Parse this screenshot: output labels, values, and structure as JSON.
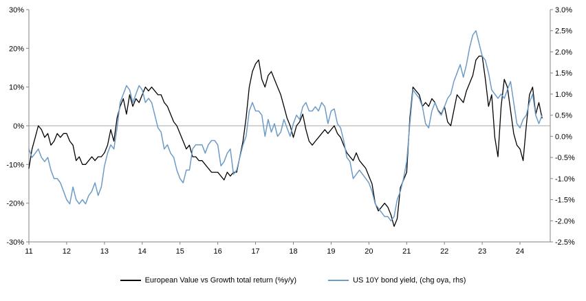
{
  "chart_data": {
    "type": "line",
    "title": "",
    "background": "#ffffff",
    "grid": false,
    "legend_position": "bottom-center",
    "zero_line_color": "#a6a6a6",
    "spine_color": "#808080",
    "x_min": 11,
    "x_max": 24.8,
    "x_ticks": [
      "11",
      "12",
      "13",
      "14",
      "15",
      "16",
      "17",
      "18",
      "19",
      "20",
      "21",
      "22",
      "23",
      "24"
    ],
    "left_axis": {
      "max": 30,
      "min": -30,
      "ticks": [
        "30%",
        "20%",
        "10%",
        "0%",
        "-10%",
        "-20%",
        "-30%"
      ]
    },
    "right_axis": {
      "max": 3.0,
      "min": -2.5,
      "ticks": [
        "3.0%",
        "2.5%",
        "2.0%",
        "1.5%",
        "1.0%",
        "0.5%",
        "0.0%",
        "-0.5%",
        "-1.0%",
        "-1.5%",
        "-2.0%",
        "-2.5%"
      ]
    },
    "x_start": 11.0,
    "x_step": 0.0833333,
    "series": [
      {
        "name": "European Value vs Growth total return (%y/y)",
        "color": "#000000",
        "width": 1.3,
        "axis": "left",
        "values": [
          -11,
          -6,
          -3,
          0,
          -1,
          -3,
          -2,
          -5,
          -4,
          -2,
          -3,
          -2,
          -2,
          -4,
          -5,
          -9,
          -8,
          -10,
          -10,
          -9,
          -8,
          -9,
          -8,
          -8,
          -7,
          -5,
          -1,
          -4,
          2,
          5,
          7,
          3,
          8,
          5,
          7,
          6,
          8,
          10,
          9,
          10,
          9,
          8,
          8,
          6,
          5,
          3,
          1,
          0,
          -2,
          -4,
          -6,
          -5,
          -8,
          -8,
          -9,
          -9,
          -10,
          -11,
          -12,
          -12,
          -12,
          -13,
          -14,
          -12,
          -13,
          -12,
          -12,
          -8,
          -4,
          2,
          10,
          14,
          16,
          17,
          12,
          10,
          13,
          14,
          12,
          10,
          8,
          5,
          2,
          0,
          -3,
          0,
          1,
          3,
          -1,
          -4,
          -5,
          -4,
          -3,
          -2,
          -1,
          -2,
          -1,
          0,
          -2,
          -3,
          -5,
          -7,
          -8,
          -9,
          -7,
          -9,
          -10,
          -11,
          -13,
          -15,
          -20,
          -22,
          -21,
          -20,
          -21,
          -23,
          -26,
          -24,
          -16,
          -14,
          -12,
          2,
          10,
          9,
          8,
          5,
          6,
          5,
          7,
          6,
          4,
          3,
          5,
          1,
          0,
          4,
          8,
          7,
          6,
          9,
          11,
          13,
          17,
          18,
          18,
          12,
          5,
          8,
          -3,
          -8,
          5,
          12,
          10,
          4,
          -2,
          -5,
          -6,
          -9,
          0,
          8,
          10,
          3,
          6,
          2
        ]
      },
      {
        "name": "US 10Y bond yield, (chg oya, rhs)",
        "color": "#6b9bc7",
        "width": 1.5,
        "axis": "right",
        "values": [
          -0.3,
          -0.5,
          -0.4,
          -0.3,
          -0.5,
          -0.6,
          -0.5,
          -0.8,
          -1.0,
          -1.0,
          -1.1,
          -1.3,
          -1.5,
          -1.6,
          -1.2,
          -1.5,
          -1.6,
          -1.5,
          -1.6,
          -1.4,
          -1.3,
          -1.1,
          -1.4,
          -1.2,
          -0.7,
          -0.4,
          -0.2,
          -0.3,
          0.2,
          0.8,
          1.0,
          1.2,
          1.1,
          0.8,
          1.0,
          1.2,
          1.1,
          0.8,
          0.9,
          0.8,
          0.5,
          0.2,
          0.1,
          -0.3,
          -0.2,
          -0.4,
          -0.5,
          -0.8,
          -1.0,
          -1.1,
          -0.8,
          -0.8,
          -0.3,
          -0.2,
          -0.2,
          -0.2,
          -0.4,
          -0.2,
          -0.1,
          -0.1,
          -0.2,
          -0.7,
          -0.6,
          -0.4,
          -0.3,
          -0.9,
          -0.8,
          -0.5,
          -0.2,
          0.0,
          0.6,
          0.8,
          0.6,
          0.6,
          0.5,
          0.0,
          0.4,
          0.1,
          0.3,
          0.0,
          0.1,
          0.4,
          0.2,
          0.0,
          0.3,
          0.5,
          0.4,
          0.7,
          0.8,
          0.6,
          0.6,
          0.7,
          0.6,
          0.8,
          0.7,
          0.3,
          0.6,
          0.65,
          0.3,
          0.2,
          -0.1,
          -0.5,
          -0.6,
          -1.0,
          -0.9,
          -0.8,
          -0.9,
          -1.0,
          -1.1,
          -1.3,
          -1.6,
          -1.7,
          -1.8,
          -1.9,
          -1.9,
          -2.0,
          -1.9,
          -1.5,
          -1.3,
          -1.0,
          -0.6,
          0.3,
          1.1,
          1.0,
          0.9,
          0.7,
          0.3,
          0.2,
          0.6,
          0.8,
          0.6,
          0.5,
          0.7,
          0.9,
          1.0,
          1.3,
          1.5,
          1.7,
          1.4,
          1.7,
          2.1,
          2.4,
          2.5,
          2.2,
          1.9,
          1.8,
          1.5,
          1.1,
          1.0,
          0.9,
          1.0,
          0.9,
          1.1,
          1.3,
          0.8,
          0.3,
          0.2,
          0.4,
          0.5,
          0.8,
          1.0,
          0.5,
          0.3,
          0.5
        ]
      }
    ]
  },
  "legend": {
    "items": [
      {
        "label": "European Value vs Growth total return (%y/y)"
      },
      {
        "label": "US 10Y bond yield, (chg oya, rhs)"
      }
    ]
  }
}
